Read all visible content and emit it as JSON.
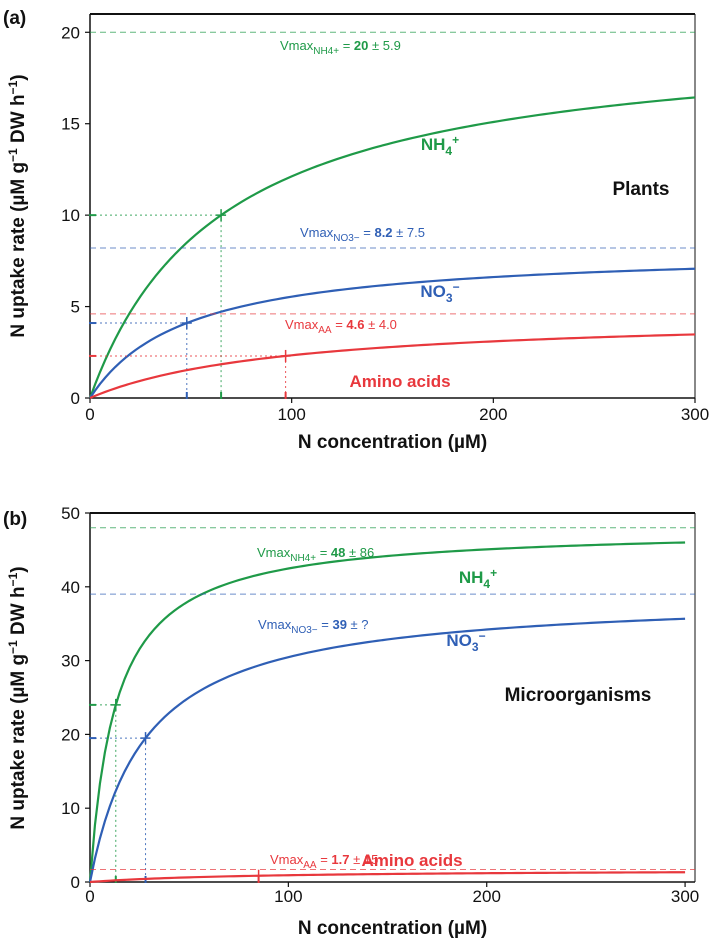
{
  "colors": {
    "nh4": "#1f9a48",
    "no3": "#2f5fb5",
    "aa": "#e8383d",
    "dot": "#7a7a7a"
  },
  "chart_data": [
    {
      "type": "line",
      "panel_label": "(a)",
      "group_label": "Plants",
      "xlabel": "N concentration (µM)",
      "ylabel": [
        "N uptake rate (µM g",
        "−1",
        " DW h",
        "−1",
        ")"
      ],
      "xlim": [
        0,
        300
      ],
      "ylim": [
        0,
        21
      ],
      "xticks": [
        0,
        100,
        200,
        300
      ],
      "yticks": [
        0,
        5,
        10,
        15,
        20
      ],
      "grid": false,
      "series": [
        {
          "key": "nh4",
          "name": "NH",
          "name_sub": "4",
          "name_sup": "+",
          "model": "michaelis-menten",
          "vmax": 20,
          "km": 65,
          "x": [
            0,
            10,
            20,
            30,
            40,
            50,
            65,
            80,
            100,
            125,
            150,
            175,
            200,
            225,
            250,
            275,
            300
          ],
          "values": [
            0,
            2.67,
            4.71,
            6.32,
            7.62,
            8.7,
            10.0,
            11.03,
            12.12,
            13.16,
            13.95,
            14.58,
            15.09,
            15.52,
            15.87,
            16.18,
            16.44
          ],
          "vmax_label": {
            "prefix": "Vmax",
            "sub": "NH4+",
            "eq": " = ",
            "value": "20",
            "pm": " ± 5.9"
          }
        },
        {
          "key": "no3",
          "name": "NO",
          "name_sub": "3",
          "name_sup": "−",
          "model": "michaelis-menten",
          "vmax": 8.2,
          "km": 48,
          "x": [
            0,
            10,
            20,
            30,
            48,
            60,
            80,
            100,
            125,
            150,
            175,
            200,
            225,
            250,
            275,
            300
          ],
          "values": [
            0,
            1.41,
            2.41,
            3.15,
            4.1,
            4.56,
            5.13,
            5.54,
            5.92,
            6.21,
            6.44,
            6.61,
            6.76,
            6.88,
            6.98,
            7.07
          ],
          "vmax_label": {
            "prefix": "Vmax",
            "sub": "NO3−",
            "eq": " = ",
            "value": "8.2",
            "pm": " ± 7.5"
          }
        },
        {
          "key": "aa",
          "name": "Amino acids",
          "model": "michaelis-menten",
          "vmax": 4.6,
          "km": 97,
          "x": [
            0,
            10,
            25,
            50,
            75,
            97,
            125,
            150,
            175,
            200,
            225,
            250,
            275,
            300
          ],
          "values": [
            0,
            0.43,
            0.94,
            1.56,
            2.0,
            2.3,
            2.59,
            2.79,
            2.96,
            3.1,
            3.21,
            3.31,
            3.4,
            3.48
          ],
          "vmax_label": {
            "prefix": "Vmax",
            "sub": "AA",
            "eq": " = ",
            "value": "4.6",
            "pm": " ± 4.0"
          }
        }
      ]
    },
    {
      "type": "line",
      "panel_label": "(b)",
      "group_label": "Microorganisms",
      "xlabel": "N concentration (µM)",
      "ylabel": [
        "N uptake rate (µM g",
        "−1",
        " DW h",
        "−1",
        ")"
      ],
      "xlim": [
        0,
        305
      ],
      "ylim": [
        0,
        50
      ],
      "xticks": [
        0,
        100,
        200,
        300
      ],
      "yticks": [
        0,
        10,
        20,
        30,
        40,
        50
      ],
      "grid": false,
      "series": [
        {
          "key": "nh4",
          "name": "NH",
          "name_sub": "4",
          "name_sup": "+",
          "model": "michaelis-menten",
          "vmax": 48,
          "km": 13,
          "x": [
            0,
            5,
            13,
            25,
            50,
            75,
            100,
            150,
            200,
            250,
            300
          ],
          "values": [
            0,
            13.3,
            24,
            31.6,
            38.1,
            40.9,
            42.5,
            44.2,
            45.1,
            45.6,
            46.0
          ],
          "vmax_label": {
            "prefix": "Vmax",
            "sub": "NH4+",
            "eq": " = ",
            "value": "48",
            "pm": " ± 86"
          }
        },
        {
          "key": "no3",
          "name": "NO",
          "name_sub": "3",
          "name_sup": "−",
          "model": "michaelis-menten",
          "vmax": 39,
          "km": 28,
          "x": [
            0,
            10,
            28,
            50,
            75,
            100,
            150,
            200,
            250,
            300
          ],
          "values": [
            0,
            10.3,
            19.5,
            25.0,
            28.4,
            30.5,
            32.9,
            34.2,
            35.1,
            35.7
          ],
          "vmax_label": {
            "prefix": "Vmax",
            "sub": "NO3−",
            "eq": " = ",
            "value": "39",
            "pm": " ± ?"
          }
        },
        {
          "key": "aa",
          "name": "Amino acids",
          "model": "michaelis-menten",
          "vmax": 1.7,
          "km": 85,
          "x": [
            0,
            25,
            50,
            85,
            125,
            175,
            225,
            300
          ],
          "values": [
            0,
            0.39,
            0.63,
            0.85,
            1.01,
            1.14,
            1.23,
            1.32
          ],
          "vmax_label": {
            "prefix": "Vmax",
            "sub": "AA",
            "eq": " = ",
            "value": "1.7",
            "pm": " ± 15"
          }
        }
      ]
    }
  ]
}
